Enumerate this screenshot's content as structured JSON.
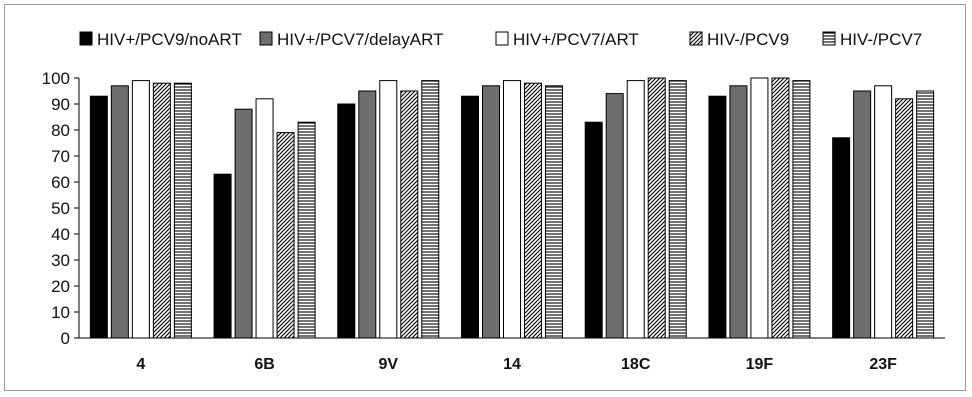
{
  "chart_data": {
    "type": "bar",
    "title": "",
    "xlabel": "",
    "ylabel": "",
    "ylim": [
      0,
      100
    ],
    "yticks": [
      0,
      10,
      20,
      30,
      40,
      50,
      60,
      70,
      80,
      90,
      100
    ],
    "grid": false,
    "legend_position": "top",
    "categories": [
      "4",
      "6B",
      "9V",
      "14",
      "18C",
      "19F",
      "23F"
    ],
    "series": [
      {
        "name": "HIV+/PCV9/noART",
        "fill": "black",
        "values": [
          93,
          63,
          90,
          93,
          83,
          93,
          77
        ]
      },
      {
        "name": "HIV+/PCV7/delayART",
        "fill": "dark-gray",
        "values": [
          97,
          88,
          95,
          97,
          94,
          97,
          95
        ]
      },
      {
        "name": "HIV+/PCV7/ART",
        "fill": "white",
        "values": [
          99,
          92,
          99,
          99,
          99,
          100,
          97
        ]
      },
      {
        "name": "HIV-/PCV9",
        "fill": "diagonal-hatch",
        "values": [
          98,
          79,
          95,
          98,
          100,
          100,
          92
        ]
      },
      {
        "name": "HIV-/PCV7",
        "fill": "horizontal-stripes",
        "values": [
          98,
          83,
          99,
          97,
          99,
          99,
          95
        ]
      }
    ]
  }
}
